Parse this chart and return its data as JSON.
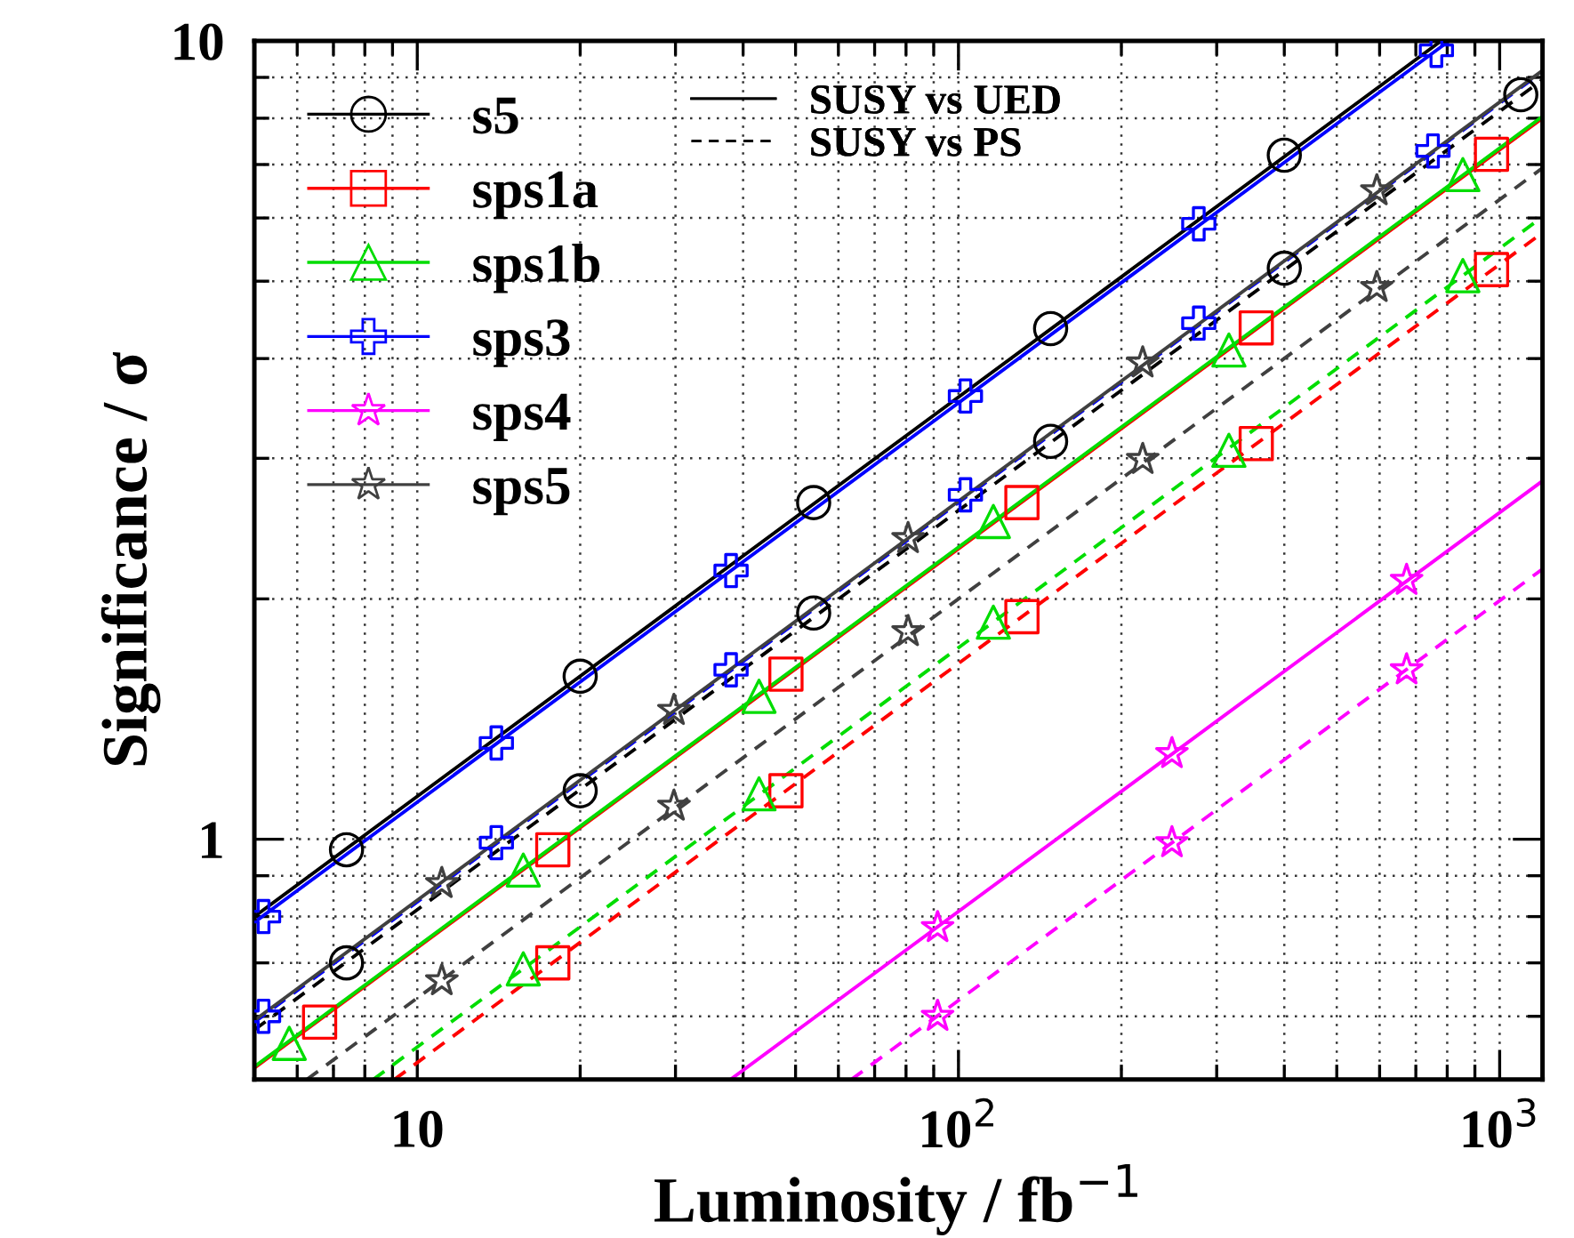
{
  "chart_data": {
    "type": "line",
    "xlabel": "Luminosity / fb$^{−1}$",
    "ylabel": "Significance / σ",
    "log": "xy",
    "grid": true,
    "legend": "top left",
    "annotations": [
      "SUSY vs UED",
      "SUSY vs PS"
    ],
    "xlim": [
      5,
      1200
    ],
    "ylim": [
      0.5,
      10
    ],
    "xticks": [
      {
        "value": 5,
        "label": null
      },
      {
        "value": 6,
        "label": null
      },
      {
        "value": 7,
        "label": null
      },
      {
        "value": 8,
        "label": null
      },
      {
        "value": 9,
        "label": null
      },
      10,
      {
        "value": 20,
        "label": null
      },
      {
        "value": 30,
        "label": null
      },
      {
        "value": 40,
        "label": null
      },
      {
        "value": 50,
        "label": null
      },
      {
        "value": 60,
        "label": null
      },
      {
        "value": 70,
        "label": null
      },
      {
        "value": 80,
        "label": null
      },
      {
        "value": 90,
        "label": null
      },
      {
        "value": 100,
        "label": "10$^{2}$"
      },
      {
        "value": 200,
        "label": null
      },
      {
        "value": 300,
        "label": null
      },
      {
        "value": 400,
        "label": null
      },
      {
        "value": 500,
        "label": null
      },
      {
        "value": 600,
        "label": null
      },
      {
        "value": 700,
        "label": null
      },
      {
        "value": 800,
        "label": null
      },
      {
        "value": 900,
        "label": null
      },
      {
        "value": 1000,
        "label": "10$^{3}$"
      }
    ],
    "yticks": [
      {
        "value": 0.5,
        "label": null
      },
      {
        "value": 0.6,
        "label": null
      },
      {
        "value": 0.7,
        "label": null
      },
      {
        "value": 0.8,
        "label": null
      },
      {
        "value": 0.9,
        "label": null
      },
      1,
      {
        "value": 2,
        "label": null
      },
      {
        "value": 3,
        "label": null
      },
      {
        "value": 4,
        "label": null
      },
      {
        "value": 5,
        "label": null
      },
      {
        "value": 6,
        "label": null
      },
      {
        "value": 7,
        "label": null
      },
      {
        "value": 8,
        "label": null
      },
      {
        "value": 9,
        "label": null
      },
      10
    ],
    "series": [
      {
        "color": "#000000",
        "line_style": "solid",
        "x": [
          5,
          780
        ],
        "values": [
          0.8,
          10
        ]
      },
      {
        "color": "#000000",
        "line_style": "dashed",
        "x": [
          5,
          1200
        ],
        "values": [
          0.577,
          8.94
        ]
      },
      {
        "color": "#ff0000",
        "line_style": "solid",
        "x": [
          5,
          1200
        ],
        "values": [
          0.517,
          8.0
        ]
      },
      {
        "color": "#ff0000",
        "line_style": "dashed",
        "x": [
          9.07,
          1200
        ],
        "values": [
          0.5,
          5.75
        ]
      },
      {
        "color": "#00dd00",
        "line_style": "solid",
        "x": [
          5,
          1200
        ],
        "values": [
          0.519,
          8.04
        ]
      },
      {
        "color": "#00dd00",
        "line_style": "dashed",
        "x": [
          8.29,
          1200
        ],
        "values": [
          0.5,
          6.02
        ]
      },
      {
        "color": "#0000ff",
        "line_style": "solid",
        "x": [
          5,
          807
        ],
        "values": [
          0.787,
          10
        ]
      },
      {
        "color": "#0000ff",
        "line_style": "dashed",
        "x": [
          5,
          1200
        ],
        "values": [
          0.59,
          9.15
        ]
      },
      {
        "color": "#ff00ff",
        "line_style": "solid",
        "x": [
          37.9,
          1200
        ],
        "values": [
          0.5,
          2.81
        ]
      },
      {
        "color": "#ff00ff",
        "line_style": "dashed",
        "x": [
          63.4,
          1200
        ],
        "values": [
          0.5,
          2.18
        ]
      },
      {
        "color": "#404040",
        "line_style": "solid",
        "x": [
          5,
          1200
        ],
        "values": [
          0.593,
          9.18
        ]
      },
      {
        "color": "#404040",
        "line_style": "dashed",
        "x": [
          6.25,
          1200
        ],
        "values": [
          0.5,
          6.93
        ]
      },
      {
        "type": "scatter",
        "name": "s5",
        "color": "#000000",
        "marker": "circle",
        "x": [
          7.4,
          20,
          54,
          148,
          400
        ],
        "values": [
          0.97,
          1.6,
          2.64,
          4.36,
          7.19
        ]
      },
      {
        "type": "scatter",
        "name": "sps1a",
        "color": "#ff0000",
        "marker": "square",
        "x": [
          6.6,
          17.8,
          48,
          131,
          355,
          966
        ],
        "values": [
          0.59,
          0.97,
          1.61,
          2.64,
          4.37,
          7.21
        ]
      },
      {
        "type": "scatter",
        "name": "sps1b",
        "color": "#00dd00",
        "marker": "triangle",
        "x": [
          5.8,
          15.7,
          42.8,
          116,
          316,
          855
        ],
        "values": [
          0.555,
          0.915,
          1.51,
          2.5,
          4.1,
          6.8
        ]
      },
      {
        "type": "scatter",
        "name": "sps3",
        "color": "#0000ff",
        "marker": "cross",
        "x": [
          5.2,
          14,
          38,
          103,
          278,
          764
        ],
        "values": [
          0.8,
          1.32,
          2.17,
          3.59,
          5.9,
          9.73
        ]
      },
      {
        "type": "scatter",
        "name": "sps4",
        "color": "#ff00ff",
        "marker": "star",
        "x": [
          91.5,
          248,
          673
        ],
        "values": [
          0.775,
          1.28,
          2.11
        ]
      },
      {
        "type": "scatter",
        "name": "sps5",
        "color": "#404040",
        "marker": "star",
        "x": [
          11.1,
          29.8,
          80.7,
          219,
          593
        ],
        "values": [
          0.88,
          1.45,
          2.38,
          3.95,
          6.49
        ]
      },
      {
        "type": "scatter",
        "color": "#000000",
        "marker": "circle",
        "x": [
          7.4,
          20,
          54,
          148,
          400,
          1094
        ],
        "values": [
          0.7,
          1.15,
          1.92,
          3.15,
          5.19,
          8.56
        ]
      },
      {
        "type": "scatter",
        "color": "#ff0000",
        "marker": "square",
        "x": [
          17.8,
          48,
          131,
          355,
          966
        ],
        "values": [
          0.7,
          1.15,
          1.9,
          3.13,
          5.17
        ]
      },
      {
        "type": "scatter",
        "color": "#00dd00",
        "marker": "triangle",
        "x": [
          15.7,
          42.8,
          116,
          316,
          855
        ],
        "values": [
          0.688,
          1.14,
          1.87,
          3.07,
          5.08
        ]
      },
      {
        "type": "scatter",
        "color": "#0000ff",
        "marker": "cross",
        "x": [
          5.2,
          14,
          38,
          103,
          278,
          753
        ],
        "values": [
          0.6,
          0.99,
          1.63,
          2.7,
          4.43,
          7.28
        ]
      },
      {
        "type": "scatter",
        "color": "#ff00ff",
        "marker": "star",
        "x": [
          91.5,
          248,
          673
        ],
        "values": [
          0.6,
          0.99,
          1.63
        ]
      },
      {
        "type": "scatter",
        "color": "#404040",
        "marker": "star",
        "x": [
          11.1,
          29.8,
          80.7,
          219,
          593
        ],
        "values": [
          0.665,
          1.1,
          1.82,
          2.99,
          4.91
        ]
      }
    ]
  }
}
